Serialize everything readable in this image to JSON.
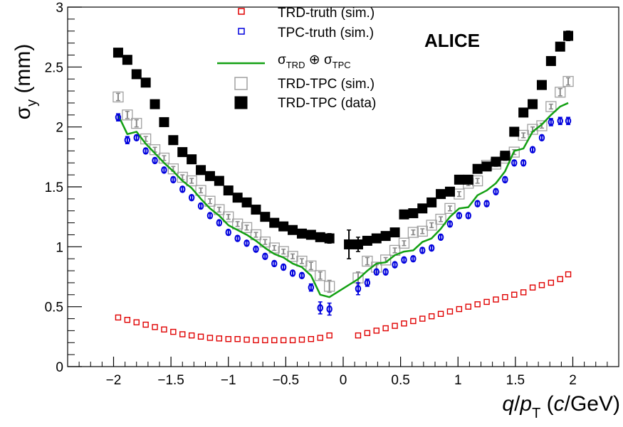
{
  "chart_data": {
    "type": "scatter",
    "title": "",
    "label": "ALICE",
    "xlabel": {
      "q": "q",
      "slash": "/",
      "p": "p",
      "sub": "T",
      "open": " (",
      "c": "c",
      "rest": "/GeV)"
    },
    "ylabel": {
      "sigma": "σ",
      "sub": "y",
      "rest": " (mm)"
    },
    "xlim": [
      -2.4,
      2.4
    ],
    "ylim": [
      0,
      3
    ],
    "xticks": [
      {
        "v": -2,
        "label": "−2"
      },
      {
        "v": -1.5,
        "label": "−1.5"
      },
      {
        "v": -1,
        "label": "−1"
      },
      {
        "v": -0.5,
        "label": "−0.5"
      },
      {
        "v": 0,
        "label": "0"
      },
      {
        "v": 0.5,
        "label": "0.5"
      },
      {
        "v": 1,
        "label": "1"
      },
      {
        "v": 1.5,
        "label": "1.5"
      },
      {
        "v": 2,
        "label": "2"
      }
    ],
    "yticks": [
      {
        "v": 0,
        "label": "0"
      },
      {
        "v": 0.5,
        "label": "0.5"
      },
      {
        "v": 1,
        "label": "1"
      },
      {
        "v": 1.5,
        "label": "1.5"
      },
      {
        "v": 2,
        "label": "2"
      },
      {
        "v": 2.5,
        "label": "2.5"
      },
      {
        "v": 3,
        "label": "3"
      }
    ],
    "legend": {
      "placement": "top-center",
      "entries": [
        {
          "key": "trd",
          "label": "TRD-truth (sim.)"
        },
        {
          "key": "tpc",
          "label": "TPC-truth (sim.)"
        },
        {
          "key": "sum",
          "label": {
            "s1": "σ",
            "sub1": "TRD",
            "op": " ⊕ ",
            "s2": "σ",
            "sub2": "TPC"
          }
        },
        {
          "key": "sim",
          "label": "TRD-TPC (sim.)"
        },
        {
          "key": "data",
          "label": "TRD-TPC (data)"
        }
      ]
    },
    "colors": {
      "trd": "#e00000",
      "tpc": "#0000dd",
      "sum": "#13a013",
      "sim": "#a0a0a0",
      "data": "#000000"
    },
    "series": [
      {
        "key": "trd",
        "marker": "open-square-small",
        "x": [
          -1.96,
          -1.88,
          -1.8,
          -1.72,
          -1.64,
          -1.56,
          -1.48,
          -1.4,
          -1.32,
          -1.24,
          -1.16,
          -1.08,
          -1.0,
          -0.92,
          -0.84,
          -0.76,
          -0.68,
          -0.6,
          -0.52,
          -0.44,
          -0.36,
          -0.28,
          -0.2,
          -0.12,
          0.13,
          0.21,
          0.29,
          0.37,
          0.45,
          0.53,
          0.61,
          0.69,
          0.77,
          0.85,
          0.93,
          1.01,
          1.09,
          1.17,
          1.25,
          1.33,
          1.41,
          1.49,
          1.57,
          1.65,
          1.73,
          1.81,
          1.89,
          1.96
        ],
        "y": [
          0.41,
          0.39,
          0.37,
          0.35,
          0.33,
          0.31,
          0.29,
          0.27,
          0.26,
          0.25,
          0.24,
          0.235,
          0.23,
          0.23,
          0.225,
          0.22,
          0.22,
          0.22,
          0.22,
          0.22,
          0.225,
          0.23,
          0.24,
          0.26,
          0.26,
          0.28,
          0.3,
          0.32,
          0.34,
          0.36,
          0.38,
          0.4,
          0.42,
          0.44,
          0.46,
          0.48,
          0.5,
          0.52,
          0.54,
          0.56,
          0.58,
          0.6,
          0.62,
          0.66,
          0.68,
          0.7,
          0.73,
          0.77
        ]
      },
      {
        "key": "tpc",
        "marker": "open-circle",
        "x": [
          -1.96,
          -1.88,
          -1.8,
          -1.72,
          -1.64,
          -1.56,
          -1.48,
          -1.4,
          -1.32,
          -1.24,
          -1.16,
          -1.08,
          -1.0,
          -0.92,
          -0.84,
          -0.76,
          -0.68,
          -0.6,
          -0.52,
          -0.44,
          -0.36,
          -0.28,
          -0.2,
          -0.12,
          0.13,
          0.21,
          0.29,
          0.37,
          0.45,
          0.53,
          0.61,
          0.69,
          0.77,
          0.85,
          0.93,
          1.01,
          1.09,
          1.17,
          1.25,
          1.33,
          1.41,
          1.49,
          1.57,
          1.65,
          1.73,
          1.81,
          1.89,
          1.96
        ],
        "y": [
          2.08,
          1.89,
          1.91,
          1.8,
          1.72,
          1.64,
          1.56,
          1.48,
          1.41,
          1.34,
          1.26,
          1.2,
          1.12,
          1.07,
          1.03,
          0.98,
          0.92,
          0.86,
          0.83,
          0.78,
          0.76,
          0.66,
          0.49,
          0.48,
          0.65,
          0.7,
          0.79,
          0.79,
          0.85,
          0.89,
          0.9,
          0.97,
          0.99,
          1.08,
          1.19,
          1.26,
          1.26,
          1.36,
          1.36,
          1.46,
          1.56,
          1.7,
          1.7,
          1.81,
          1.91,
          2.04,
          2.05,
          2.05
        ],
        "err": [
          0.03,
          0.03,
          0.02,
          0.02,
          0.02,
          0.02,
          0.02,
          0.02,
          0.02,
          0.02,
          0.02,
          0.02,
          0.02,
          0.02,
          0.02,
          0.02,
          0.02,
          0.02,
          0.02,
          0.02,
          0.02,
          0.03,
          0.05,
          0.05,
          0.05,
          0.03,
          0.02,
          0.02,
          0.02,
          0.02,
          0.02,
          0.02,
          0.02,
          0.02,
          0.02,
          0.02,
          0.02,
          0.02,
          0.02,
          0.02,
          0.02,
          0.02,
          0.02,
          0.02,
          0.02,
          0.03,
          0.03,
          0.03
        ]
      },
      {
        "key": "sum",
        "marker": "line",
        "x": [
          -1.96,
          -1.88,
          -1.8,
          -1.72,
          -1.64,
          -1.56,
          -1.48,
          -1.4,
          -1.32,
          -1.24,
          -1.16,
          -1.08,
          -1.0,
          -0.92,
          -0.84,
          -0.76,
          -0.68,
          -0.6,
          -0.52,
          -0.44,
          -0.36,
          -0.28,
          -0.2,
          -0.12,
          0.13,
          0.21,
          0.29,
          0.37,
          0.45,
          0.53,
          0.61,
          0.69,
          0.77,
          0.85,
          0.93,
          1.01,
          1.09,
          1.17,
          1.25,
          1.33,
          1.41,
          1.49,
          1.57,
          1.65,
          1.73,
          1.81,
          1.89,
          1.96
        ],
        "y": [
          2.1,
          1.94,
          1.96,
          1.86,
          1.78,
          1.7,
          1.63,
          1.55,
          1.49,
          1.4,
          1.32,
          1.26,
          1.18,
          1.14,
          1.1,
          1.05,
          0.99,
          0.94,
          0.91,
          0.86,
          0.83,
          0.76,
          0.6,
          0.58,
          0.73,
          0.8,
          0.86,
          0.87,
          0.93,
          0.96,
          0.97,
          1.04,
          1.07,
          1.15,
          1.25,
          1.32,
          1.33,
          1.43,
          1.47,
          1.53,
          1.63,
          1.8,
          1.82,
          1.96,
          2.02,
          2.1,
          2.17,
          2.2
        ]
      },
      {
        "key": "sim",
        "marker": "open-square",
        "x": [
          -1.96,
          -1.88,
          -1.8,
          -1.72,
          -1.64,
          -1.56,
          -1.48,
          -1.4,
          -1.32,
          -1.24,
          -1.16,
          -1.08,
          -1.0,
          -0.92,
          -0.84,
          -0.76,
          -0.68,
          -0.6,
          -0.52,
          -0.44,
          -0.36,
          -0.28,
          -0.2,
          -0.12,
          0.13,
          0.21,
          0.29,
          0.37,
          0.45,
          0.53,
          0.61,
          0.69,
          0.77,
          0.85,
          0.93,
          1.01,
          1.09,
          1.17,
          1.25,
          1.33,
          1.41,
          1.49,
          1.57,
          1.65,
          1.73,
          1.81,
          1.89,
          1.96
        ],
        "y": [
          2.25,
          2.1,
          2.03,
          1.9,
          1.81,
          1.74,
          1.65,
          1.58,
          1.55,
          1.47,
          1.38,
          1.31,
          1.25,
          1.19,
          1.16,
          1.1,
          1.04,
          0.99,
          0.96,
          0.92,
          0.88,
          0.84,
          0.76,
          0.67,
          0.74,
          0.88,
          0.83,
          0.89,
          0.97,
          1.03,
          1.12,
          1.13,
          1.18,
          1.23,
          1.32,
          1.44,
          1.53,
          1.55,
          1.68,
          1.69,
          1.74,
          1.79,
          1.93,
          1.98,
          2.01,
          2.17,
          2.29,
          2.38
        ],
        "err": [
          0.03,
          0.03,
          0.03,
          0.02,
          0.02,
          0.02,
          0.02,
          0.02,
          0.02,
          0.02,
          0.02,
          0.02,
          0.02,
          0.02,
          0.02,
          0.02,
          0.02,
          0.02,
          0.02,
          0.02,
          0.02,
          0.03,
          0.03,
          0.05,
          0.05,
          0.03,
          0.02,
          0.02,
          0.02,
          0.02,
          0.02,
          0.02,
          0.02,
          0.02,
          0.02,
          0.02,
          0.02,
          0.02,
          0.02,
          0.02,
          0.02,
          0.02,
          0.02,
          0.02,
          0.02,
          0.02,
          0.03,
          0.03
        ]
      },
      {
        "key": "data",
        "marker": "filled-square",
        "x": [
          -1.96,
          -1.88,
          -1.8,
          -1.72,
          -1.64,
          -1.56,
          -1.48,
          -1.4,
          -1.32,
          -1.24,
          -1.16,
          -1.08,
          -1.0,
          -0.92,
          -0.84,
          -0.76,
          -0.68,
          -0.6,
          -0.52,
          -0.44,
          -0.36,
          -0.28,
          -0.2,
          -0.12,
          0.05,
          0.13,
          0.21,
          0.29,
          0.37,
          0.45,
          0.53,
          0.61,
          0.69,
          0.77,
          0.85,
          0.93,
          1.01,
          1.09,
          1.17,
          1.25,
          1.33,
          1.41,
          1.49,
          1.57,
          1.65,
          1.73,
          1.81,
          1.89,
          1.96
        ],
        "y": [
          2.62,
          2.56,
          2.44,
          2.37,
          2.19,
          2.04,
          1.89,
          1.79,
          1.73,
          1.64,
          1.59,
          1.55,
          1.47,
          1.41,
          1.37,
          1.31,
          1.25,
          1.2,
          1.17,
          1.14,
          1.11,
          1.1,
          1.08,
          1.07,
          1.02,
          1.02,
          1.05,
          1.07,
          1.09,
          1.12,
          1.27,
          1.28,
          1.32,
          1.37,
          1.44,
          1.46,
          1.56,
          1.56,
          1.65,
          1.67,
          1.71,
          1.76,
          1.96,
          2.12,
          2.19,
          2.35,
          2.55,
          2.67,
          2.76
        ],
        "err": [
          0.03,
          0.03,
          0.03,
          0.02,
          0.02,
          0.02,
          0.02,
          0.02,
          0.02,
          0.02,
          0.02,
          0.02,
          0.02,
          0.02,
          0.02,
          0.02,
          0.02,
          0.02,
          0.02,
          0.02,
          0.02,
          0.02,
          0.03,
          0.04,
          0.12,
          0.06,
          0.03,
          0.02,
          0.02,
          0.02,
          0.02,
          0.02,
          0.02,
          0.02,
          0.02,
          0.02,
          0.02,
          0.02,
          0.02,
          0.02,
          0.02,
          0.02,
          0.02,
          0.02,
          0.02,
          0.02,
          0.03,
          0.03,
          0.04
        ]
      }
    ]
  }
}
